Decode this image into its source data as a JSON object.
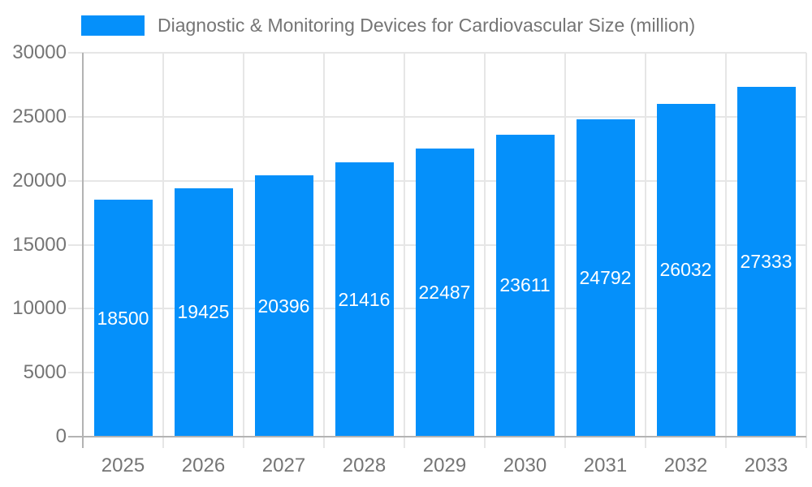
{
  "page": {
    "background": "#ffffff"
  },
  "chart_data": {
    "type": "bar",
    "title": "Diagnostic & Monitoring Devices for Cardiovascular Size (million)",
    "legend": {
      "position": "top",
      "label": "Diagnostic & Monitoring Devices for Cardiovascular Size (million)"
    },
    "categories": [
      "2025",
      "2026",
      "2027",
      "2028",
      "2029",
      "2030",
      "2031",
      "2032",
      "2033"
    ],
    "series": [
      {
        "name": "Diagnostic & Monitoring Devices for Cardiovascular Size (million)",
        "values": [
          18500,
          19425,
          20396,
          21416,
          22487,
          23611,
          24792,
          26032,
          27333
        ],
        "color": "#0590fa"
      }
    ],
    "value_labels": {
      "show": true,
      "position": "inside-center",
      "color": "#ffffff"
    },
    "xlabel": "",
    "ylabel": "",
    "ylim": [
      0,
      30000
    ],
    "yticks": [
      0,
      5000,
      10000,
      15000,
      20000,
      25000,
      30000
    ],
    "grid": {
      "horizontal": true,
      "vertical": true,
      "color": "#e6e6e6"
    },
    "axis_color": "#b3b3b3",
    "tick_label_color": "#757575",
    "legend_text_color": "#757575"
  }
}
